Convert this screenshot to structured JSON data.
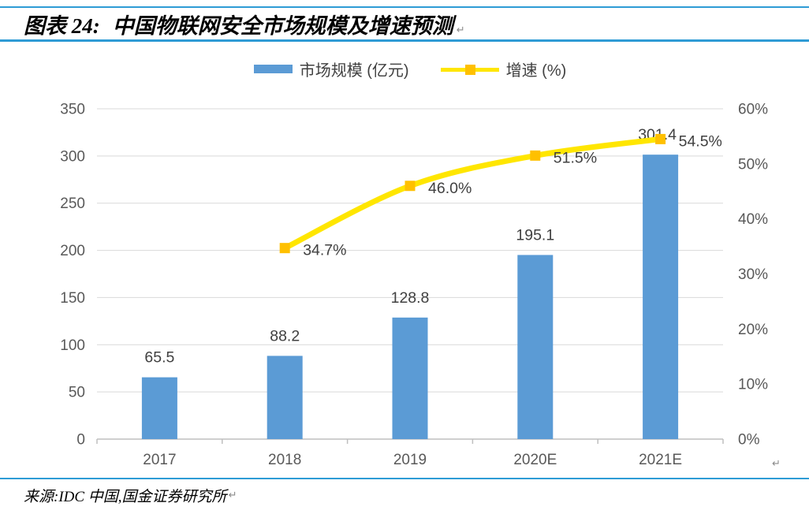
{
  "header": {
    "figure_label": "图表 24:",
    "title": "中国物联网安全市场规模及增速预测"
  },
  "marks": {
    "paragraph": "↵"
  },
  "legend": {
    "items": [
      {
        "label": "市场规模 (亿元)",
        "swatch": "bar",
        "color": "#5b9bd5"
      },
      {
        "label": "增速 (%)",
        "swatch": "line-marker",
        "color": "#ffe600",
        "marker_color": "#ffc000"
      }
    ]
  },
  "chart_data": {
    "type": "bar",
    "subtype": "bar+line combo, dual axis",
    "categories": [
      "2017",
      "2018",
      "2019",
      "2020E",
      "2021E"
    ],
    "series": [
      {
        "name": "市场规模 (亿元)",
        "type": "bar",
        "axis": "left",
        "color": "#5b9bd5",
        "values": [
          65.5,
          88.2,
          128.8,
          195.1,
          301.4
        ],
        "labels": [
          "65.5",
          "88.2",
          "128.8",
          "195.1",
          "301.4"
        ]
      },
      {
        "name": "增速 (%)",
        "type": "line",
        "axis": "right",
        "color": "#ffe600",
        "marker_color": "#ffc000",
        "values": [
          null,
          34.7,
          46.0,
          51.5,
          54.5
        ],
        "labels": [
          null,
          "34.7%",
          "46.0%",
          "51.5%",
          "54.5%"
        ]
      }
    ],
    "left_axis": {
      "min": 0,
      "max": 350,
      "step": 50,
      "ticks": [
        "0",
        "50",
        "100",
        "150",
        "200",
        "250",
        "300",
        "350"
      ]
    },
    "right_axis": {
      "min": 0,
      "max": 60,
      "step": 10,
      "ticks": [
        "0%",
        "10%",
        "20%",
        "30%",
        "40%",
        "50%",
        "60%"
      ]
    },
    "grid": true,
    "legend_position": "top",
    "colors": {
      "gridline": "#d9d9d9",
      "axis_line": "#bfbfbf",
      "axis_text": "#595959",
      "data_label": "#404040"
    }
  },
  "footer": {
    "source": "来源:IDC 中国,国金证券研究所"
  }
}
